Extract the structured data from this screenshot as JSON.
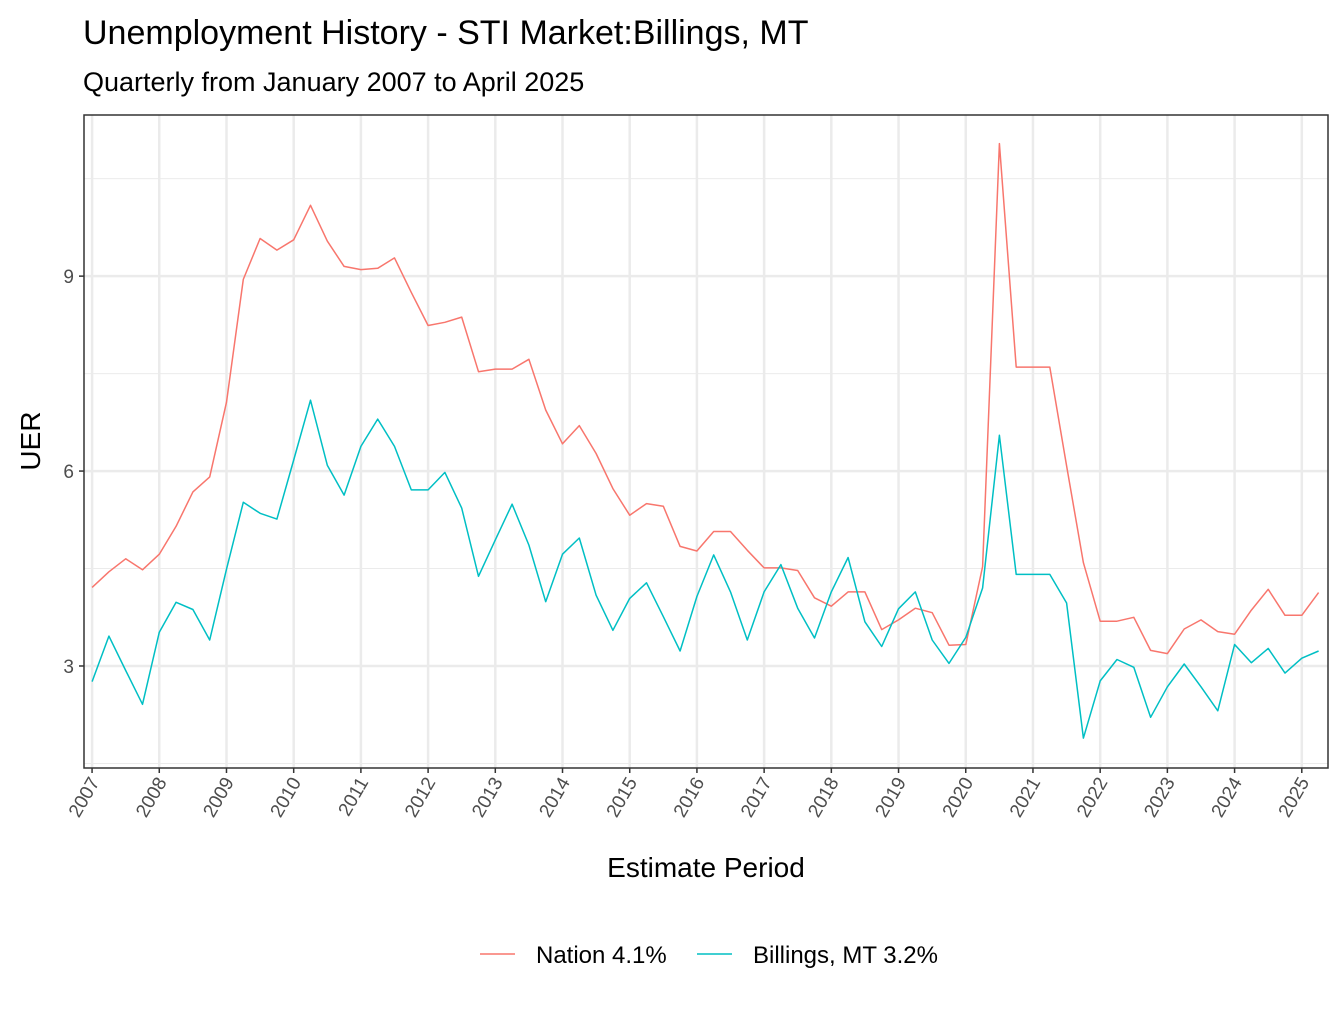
{
  "chart_data": {
    "type": "line",
    "title": "Unemployment History - STI Market:Billings, MT",
    "subtitle": "Quarterly from January 2007 to April 2025",
    "xlabel": "Estimate Period",
    "ylabel": "UER",
    "xlim": [
      2006.88,
      2025.39
    ],
    "ylim": [
      1.43,
      11.48
    ],
    "x_ticks": [
      2007,
      2008,
      2009,
      2010,
      2011,
      2012,
      2013,
      2014,
      2015,
      2016,
      2017,
      2018,
      2019,
      2020,
      2021,
      2022,
      2023,
      2024,
      2025
    ],
    "y_ticks": [
      3,
      6,
      9
    ],
    "grid": true,
    "legend_position": "bottom",
    "x_start": 2007,
    "x_step": 0.25,
    "series": [
      {
        "name": "Nation 4.1%",
        "color": "#F8766D",
        "values": [
          4.21,
          4.45,
          4.65,
          4.48,
          4.72,
          5.15,
          5.68,
          5.91,
          7.06,
          8.95,
          9.58,
          9.4,
          9.56,
          10.09,
          9.54,
          9.15,
          9.1,
          9.12,
          9.28,
          8.75,
          8.24,
          8.29,
          8.37,
          7.53,
          7.57,
          7.57,
          7.72,
          6.94,
          6.42,
          6.7,
          6.27,
          5.73,
          5.32,
          5.5,
          5.46,
          4.84,
          4.77,
          5.07,
          5.07,
          4.78,
          4.51,
          4.51,
          4.47,
          4.05,
          3.92,
          4.14,
          4.14,
          3.56,
          3.71,
          3.89,
          3.82,
          3.32,
          3.33,
          4.53,
          11.04,
          7.6,
          7.6,
          7.6,
          6.08,
          4.59,
          3.69,
          3.69,
          3.75,
          3.24,
          3.19,
          3.57,
          3.71,
          3.53,
          3.49,
          3.86,
          4.18,
          3.78,
          3.78,
          4.13
        ]
      },
      {
        "name": "Billings, MT 3.2%",
        "color": "#00BFC4",
        "values": [
          2.76,
          3.46,
          2.93,
          2.41,
          3.52,
          3.98,
          3.87,
          3.4,
          4.49,
          5.52,
          5.35,
          5.26,
          6.17,
          7.09,
          6.09,
          5.63,
          6.38,
          6.8,
          6.38,
          5.71,
          5.71,
          5.98,
          5.43,
          4.38,
          4.94,
          5.49,
          4.86,
          3.99,
          4.72,
          4.97,
          4.09,
          3.55,
          4.04,
          4.28,
          3.76,
          3.23,
          4.07,
          4.71,
          4.14,
          3.4,
          4.14,
          4.56,
          3.89,
          3.43,
          4.14,
          4.67,
          3.68,
          3.3,
          3.88,
          4.14,
          3.4,
          3.04,
          3.44,
          4.2,
          6.55,
          4.41,
          4.41,
          4.41,
          3.97,
          1.89,
          2.77,
          3.1,
          2.98,
          2.21,
          2.68,
          3.03,
          2.68,
          2.31,
          3.33,
          3.05,
          3.27,
          2.89,
          3.12,
          3.23
        ]
      }
    ]
  }
}
